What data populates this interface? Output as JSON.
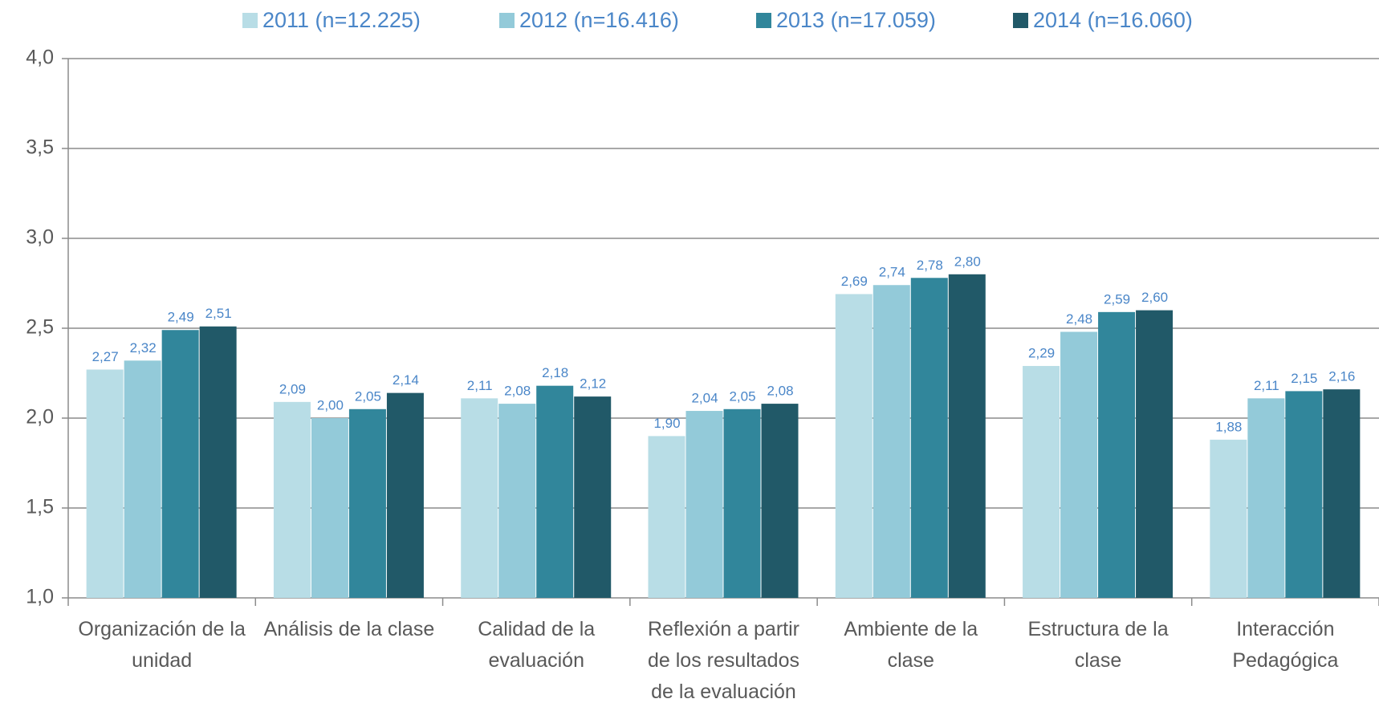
{
  "chart_data": {
    "type": "bar",
    "categories": [
      "Organización de la unidad",
      "Análisis de la clase",
      "Calidad de la evaluación",
      "Reflexión a partir de los resultados de la evaluación",
      "Ambiente de la clase",
      "Estructura de la clase",
      "Interacción Pedagógica"
    ],
    "series": [
      {
        "name": "2011 (n=12.225)",
        "color": "#b8dde6",
        "values": [
          2.27,
          2.09,
          2.11,
          1.9,
          2.69,
          2.29,
          1.88
        ],
        "value_labels": [
          "2,27",
          "2,09",
          "2,11",
          "1,90",
          "2,69",
          "2,29",
          "1,88"
        ]
      },
      {
        "name": "2012 (n=16.416)",
        "color": "#93cad9",
        "values": [
          2.32,
          2.0,
          2.08,
          2.04,
          2.74,
          2.48,
          2.11
        ],
        "value_labels": [
          "2,32",
          "2,00",
          "2,08",
          "2,04",
          "2,74",
          "2,48",
          "2,11"
        ]
      },
      {
        "name": "2013 (n=17.059)",
        "color": "#31869b",
        "values": [
          2.49,
          2.05,
          2.18,
          2.05,
          2.78,
          2.59,
          2.15
        ],
        "value_labels": [
          "2,49",
          "2,05",
          "2,18",
          "2,05",
          "2,78",
          "2,59",
          "2,15"
        ]
      },
      {
        "name": "2014 (n=16.060)",
        "color": "#215968",
        "values": [
          2.51,
          2.14,
          2.12,
          2.08,
          2.8,
          2.6,
          2.16
        ],
        "value_labels": [
          "2,51",
          "2,14",
          "2,12",
          "2,08",
          "2,80",
          "2,60",
          "2,16"
        ]
      }
    ],
    "ylim": [
      1.0,
      4.0
    ],
    "yticks": [
      {
        "value": 1.0,
        "label": "1,0"
      },
      {
        "value": 1.5,
        "label": "1,5"
      },
      {
        "value": 2.0,
        "label": "2,0"
      },
      {
        "value": 2.5,
        "label": "2,5"
      },
      {
        "value": 3.0,
        "label": "3,0"
      },
      {
        "value": 3.5,
        "label": "3,5"
      },
      {
        "value": 4.0,
        "label": "4,0"
      }
    ],
    "grid": true,
    "legend": "top"
  }
}
